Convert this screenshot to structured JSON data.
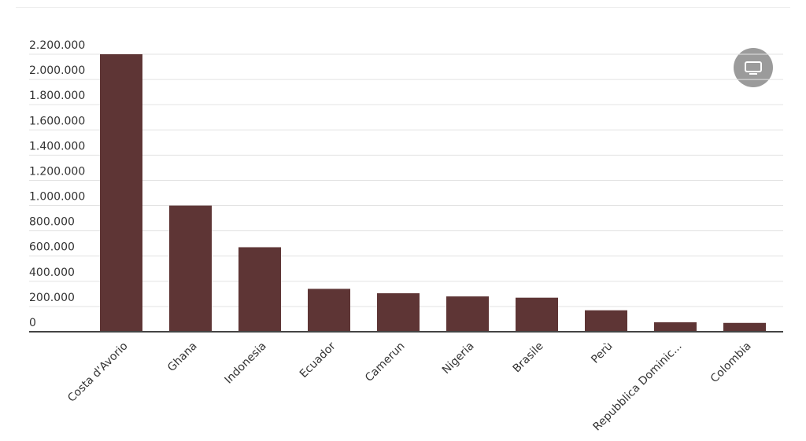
{
  "chart_data": {
    "type": "bar",
    "categories": [
      "Costa d'Avorio",
      "Ghana",
      "Indonesia",
      "Ecuador",
      "Camerun",
      "Nigeria",
      "Brasile",
      "Perù",
      "Repubblica Dominic...",
      "Colombia"
    ],
    "values": [
      2200000,
      1000000,
      670000,
      340000,
      305000,
      280000,
      270000,
      170000,
      75000,
      70000
    ],
    "color": "#5e3535",
    "ylim": [
      0,
      2200000
    ],
    "yticks": [
      0,
      {
        "value": 200000,
        "label": "200.000"
      },
      {
        "value": 400000,
        "label": "400.000"
      },
      {
        "value": 600000,
        "label": "600.000"
      },
      {
        "value": 800000,
        "label": "800.000"
      },
      {
        "value": 1000000,
        "label": "1.000.000"
      },
      {
        "value": 1200000,
        "label": "1.200.000"
      },
      {
        "value": 1400000,
        "label": "1.400.000"
      },
      {
        "value": 1600000,
        "label": "1.600.000"
      },
      {
        "value": 1800000,
        "label": "1.800.000"
      },
      {
        "value": 2000000,
        "label": "2.000.000"
      },
      {
        "value": 2200000,
        "label": "2.200.000"
      }
    ],
    "grid": true
  }
}
